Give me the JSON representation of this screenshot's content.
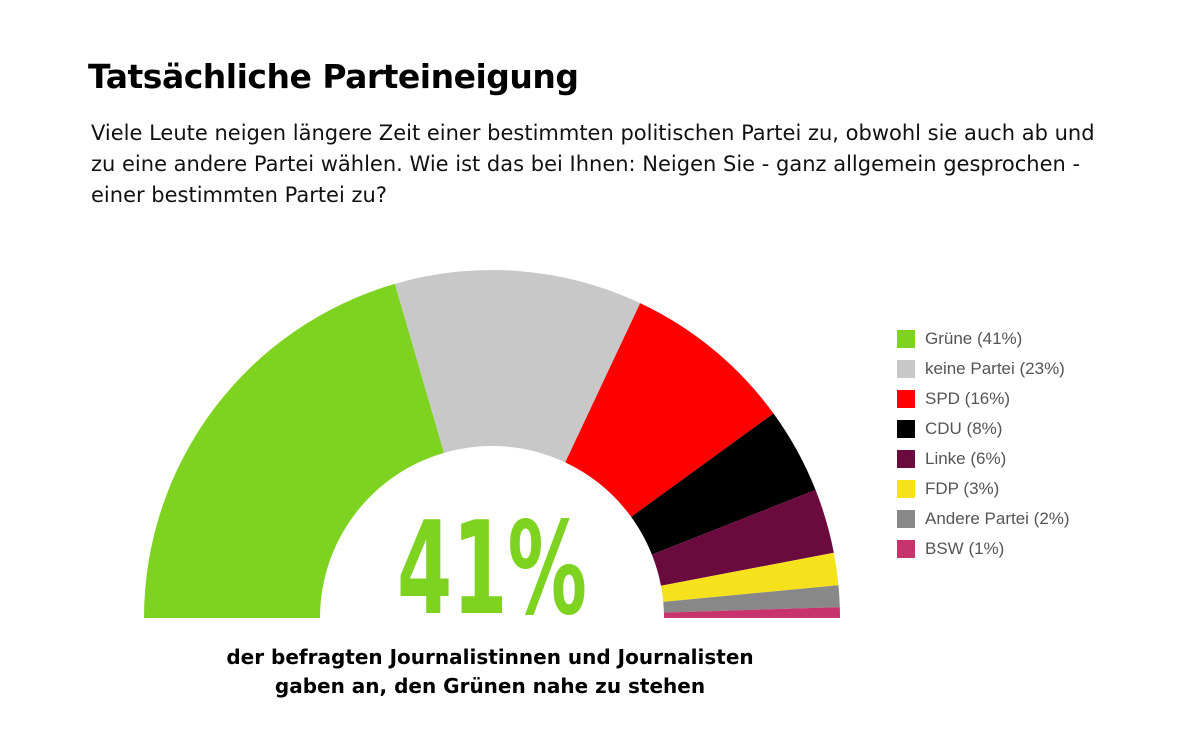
{
  "header": {
    "title": "Tatsächliche Parteineigung",
    "question": "Viele Leute neigen längere Zeit einer bestimmten politischen Partei zu, obwohl sie auch ab und zu eine andere Partei wählen. Wie ist das bei Ihnen: Neigen Sie - ganz allgemein gesprochen - einer bestimmten Partei zu?"
  },
  "chart_data": {
    "type": "pie",
    "shape": "half-donut",
    "unit": "%",
    "center_label": "41%",
    "legend_position": "right",
    "slices": [
      {
        "label": "Grüne (41%)",
        "value": 41,
        "color": "#7ED321"
      },
      {
        "label": "keine Partei (23%)",
        "value": 23,
        "color": "#C8C8C8"
      },
      {
        "label": "SPD (16%)",
        "value": 16,
        "color": "#FF0000"
      },
      {
        "label": "CDU (8%)",
        "value": 8,
        "color": "#000000"
      },
      {
        "label": "Linke (6%)",
        "value": 6,
        "color": "#6B0A3F"
      },
      {
        "label": "FDP (3%)",
        "value": 3,
        "color": "#F5E11C"
      },
      {
        "label": "Andere Partei (2%)",
        "value": 2,
        "color": "#888888"
      },
      {
        "label": "BSW (1%)",
        "value": 1,
        "color": "#C8336E"
      }
    ]
  },
  "caption": {
    "line1": "der befragten Journalistinnen und Journalisten",
    "line2": "gaben an, den Grünen nahe zu stehen"
  }
}
